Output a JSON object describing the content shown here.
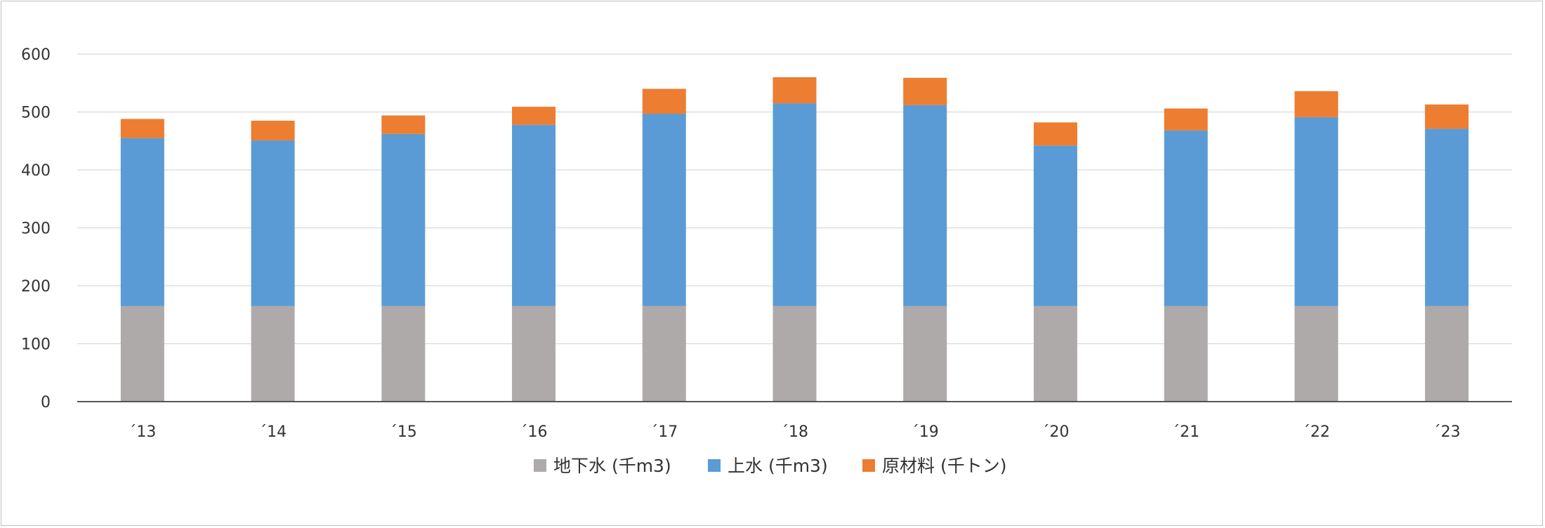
{
  "chart_data": {
    "type": "bar",
    "stacked": true,
    "categories": [
      "´13",
      "´14",
      "´15",
      "´16",
      "´17",
      "´18",
      "´19",
      "´20",
      "´21",
      "´22",
      "´23"
    ],
    "series": [
      {
        "name": "地下水 (千m3)",
        "color": "#aeaaaa",
        "values": [
          165,
          165,
          165,
          165,
          165,
          165,
          165,
          165,
          165,
          165,
          165
        ]
      },
      {
        "name": "上水 (千m3)",
        "color": "#5b9bd5",
        "values": [
          290,
          286,
          297,
          313,
          332,
          350,
          347,
          277,
          303,
          326,
          306
        ]
      },
      {
        "name": "原材料 (千トン)",
        "color": "#ed7d31",
        "values": [
          33,
          34,
          32,
          31,
          43,
          45,
          47,
          40,
          38,
          45,
          42
        ]
      }
    ],
    "y_ticks": [
      "0",
      "100",
      "200",
      "300",
      "400",
      "500",
      "600"
    ],
    "ylim": [
      0,
      600
    ],
    "grid": true,
    "legend_position": "bottom"
  }
}
